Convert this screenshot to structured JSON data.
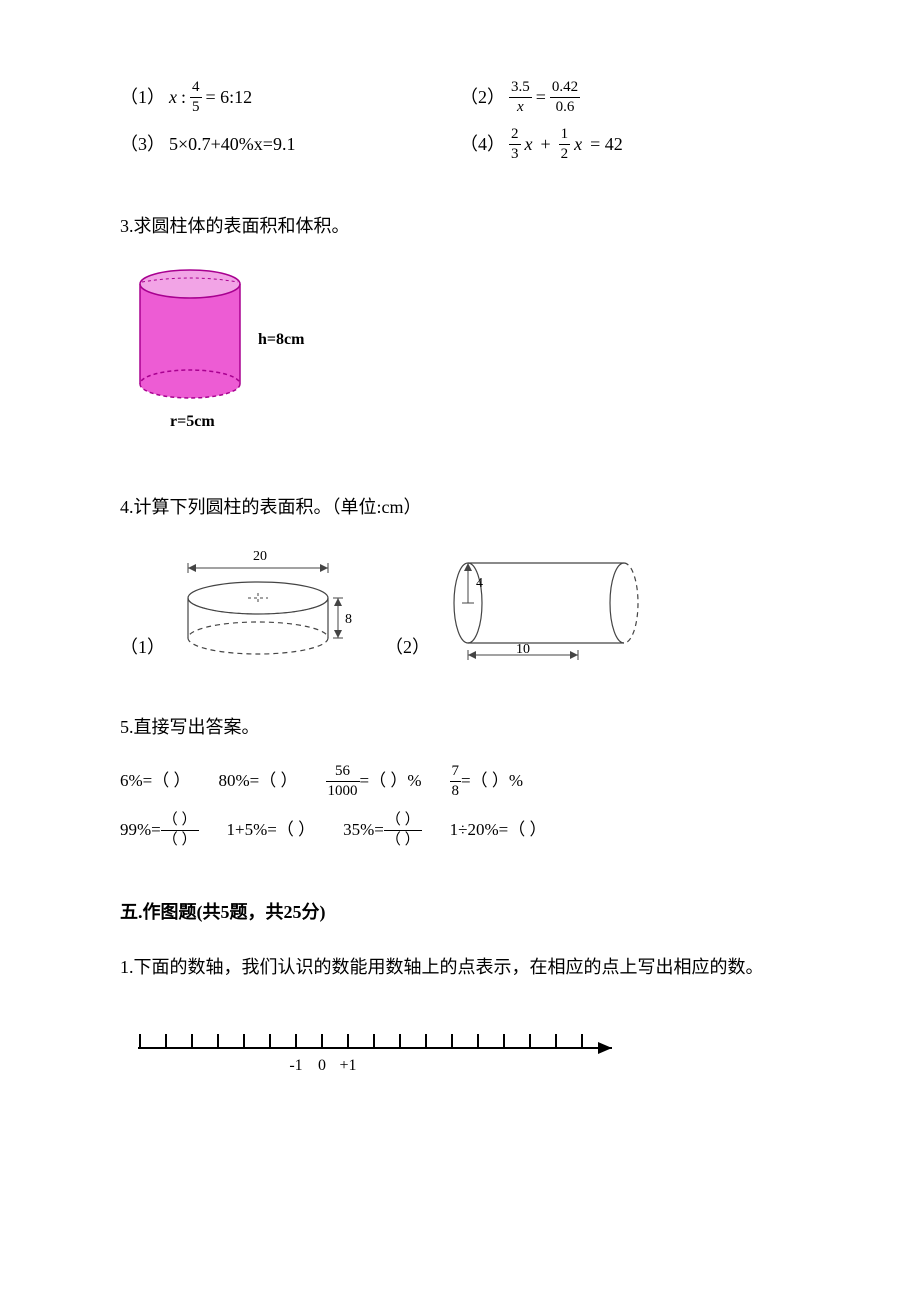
{
  "p1": {
    "items": [
      {
        "idx": "（1）",
        "lhs_var": "x",
        "colon": ":",
        "frac_n": "4",
        "frac_d": "5",
        "rhs": "= 6:12"
      },
      {
        "idx": "（2）",
        "l_n": "3.5",
        "l_d": "x",
        "eq": "=",
        "r_n": "0.42",
        "r_d": "0.6"
      },
      {
        "idx": "（3）",
        "text": "5×0.7+40%x=9.1"
      },
      {
        "idx": "（4）",
        "a_n": "2",
        "a_d": "3",
        "var1": "x",
        "plus": "+",
        "b_n": "1",
        "b_d": "2",
        "var2": "x",
        "rhs": "= 42"
      }
    ]
  },
  "p3": {
    "prompt": "3.求圆柱体的表面积和体积。",
    "h_label": "h=8cm",
    "r_label": "r=5cm",
    "cylinder_colors": {
      "body": "#ed5cd4",
      "top": "#f2a4e6",
      "border": "#a80090"
    }
  },
  "p4": {
    "prompt": "4.计算下列圆柱的表面积。（单位:cm）",
    "fig1": {
      "idx": "（1）",
      "w": "20",
      "h": "8"
    },
    "fig2": {
      "idx": "（2）",
      "r": "4",
      "len": "10"
    }
  },
  "p5": {
    "prompt": "5.直接写出答案。",
    "row1": [
      {
        "pre": "6%=",
        "blank": "（   ）"
      },
      {
        "pre": "80%=",
        "blank": "（   ）"
      },
      {
        "frac_n": "56",
        "frac_d": "1000",
        "post": " =（   ）%"
      },
      {
        "frac_n": "7",
        "frac_d": "8",
        "post": " =（   ）%"
      }
    ],
    "row2": [
      {
        "pre": "99%=",
        "bf_n": "（    ）",
        "bf_d": "（    ）"
      },
      {
        "pre": "1+5%=",
        "blank": "（   ）"
      },
      {
        "pre": "35%=",
        "bf_n": "（    ）",
        "bf_d": "（    ）"
      },
      {
        "pre": "1÷20%=",
        "blank": "（   ）"
      }
    ]
  },
  "section5": {
    "title": "五.作图题(共5题，共25分)",
    "q1": "1.下面的数轴，我们认识的数能用数轴上的点表示，在相应的点上写出相应的数。"
  },
  "numberline": {
    "tick_count": 18,
    "labels": {
      "6": "-1",
      "7": "0",
      "8": "+1"
    },
    "stroke": "#000000"
  }
}
